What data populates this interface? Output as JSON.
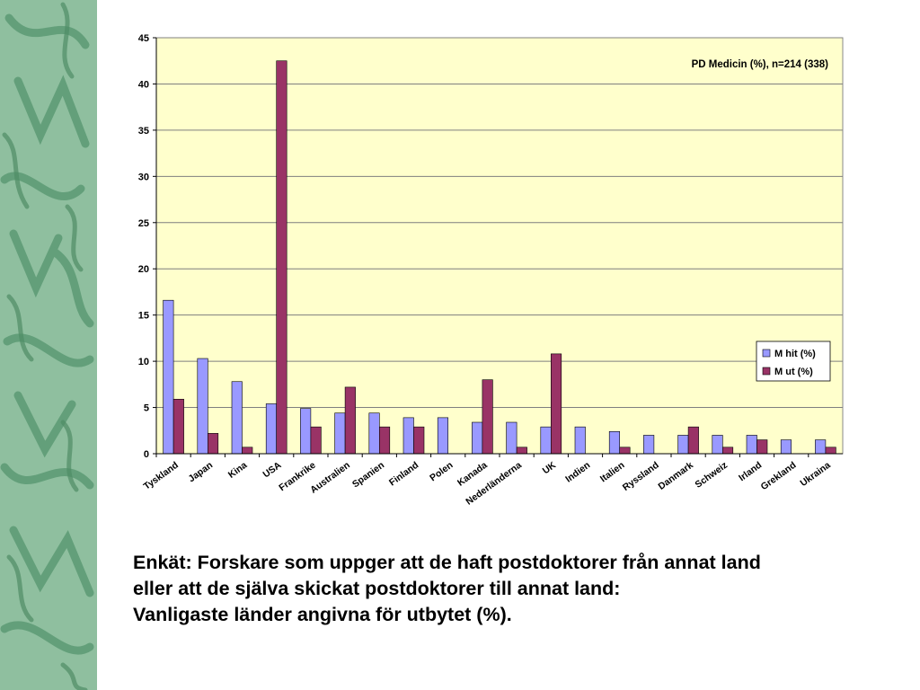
{
  "chart_data": {
    "type": "bar",
    "title": "",
    "subtitle": "PD Medicin (%), n=214 (338)",
    "xlabel": "",
    "ylabel": "",
    "ylim": [
      0,
      45
    ],
    "ytick_step": 5,
    "grid": true,
    "legend_position": "right",
    "categories": [
      "Tyskland",
      "Japan",
      "Kina",
      "USA",
      "Frankrike",
      "Australien",
      "Spanien",
      "Finland",
      "Polen",
      "Kanada",
      "Nederländerna",
      "UK",
      "Indien",
      "Italien",
      "Ryssland",
      "Danmark",
      "Schweiz",
      "Irland",
      "Grekland",
      "Ukraina"
    ],
    "series": [
      {
        "name": "M hit (%)",
        "color": "#9999ff",
        "values": [
          16.6,
          10.3,
          7.8,
          5.4,
          4.9,
          4.4,
          4.4,
          3.9,
          3.9,
          3.4,
          3.4,
          2.9,
          2.9,
          2.4,
          2.0,
          2.0,
          2.0,
          2.0,
          1.5,
          1.5
        ]
      },
      {
        "name": "M ut (%)",
        "color": "#993366",
        "values": [
          5.9,
          2.2,
          0.7,
          42.5,
          2.9,
          7.2,
          2.9,
          2.9,
          0,
          8.0,
          0.7,
          10.8,
          0,
          0.7,
          0,
          2.9,
          0.7,
          1.5,
          0,
          0.7
        ]
      }
    ],
    "plot_background": "#ffffcc"
  },
  "caption": {
    "line1": "Enkät: Forskare som uppger att de haft postdoktorer från annat land",
    "line2": "eller att de själva skickat postdoktorer till annat land:",
    "line3": "Vanligaste länder angivna för utbytet (%)."
  }
}
